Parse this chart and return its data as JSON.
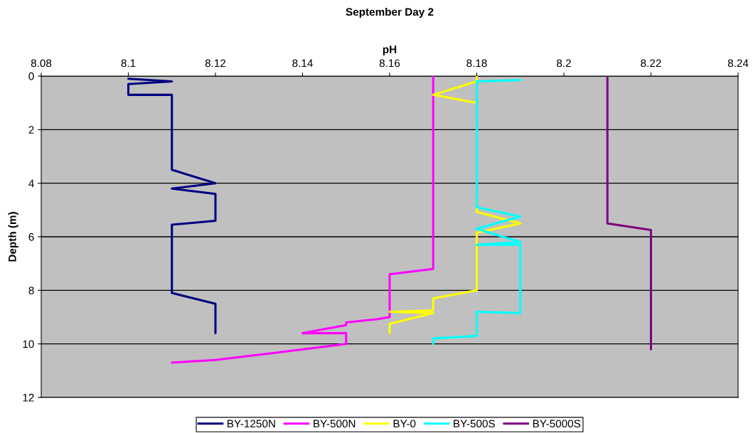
{
  "chart_data": {
    "type": "line",
    "title": "September Day 2",
    "xlabel": "pH",
    "ylabel": "Depth (m)",
    "xlim": [
      8.08,
      8.24
    ],
    "xticks": [
      8.08,
      8.1,
      8.12,
      8.14,
      8.16,
      8.18,
      8.2,
      8.22,
      8.24
    ],
    "ylim": [
      12,
      0
    ],
    "yticks": [
      0,
      2,
      4,
      6,
      8,
      10,
      12
    ],
    "grid": "y",
    "legend": "bottom",
    "marker": "none",
    "line_style": "solid",
    "series": [
      {
        "name": "BY-1250N",
        "color": "#000080",
        "x": [
          8.1,
          8.11,
          8.1,
          8.1,
          8.11,
          8.11,
          8.12,
          8.11,
          8.12,
          8.12,
          8.12,
          8.11,
          8.11,
          8.12,
          8.12
        ],
        "values": [
          0.1,
          0.2,
          0.3,
          0.7,
          0.7,
          3.5,
          4.0,
          4.2,
          4.4,
          4.6,
          5.4,
          5.55,
          8.1,
          8.5,
          9.6
        ]
      },
      {
        "name": "BY-500N",
        "color": "#ff00ff",
        "x": [
          8.17,
          8.17,
          8.17,
          8.16,
          8.16,
          8.16,
          8.157,
          8.15,
          8.15,
          8.14,
          8.15,
          8.15,
          8.133,
          8.12,
          8.11
        ],
        "values": [
          0,
          6.8,
          7.2,
          7.4,
          8.9,
          9.0,
          9.08,
          9.2,
          9.3,
          9.6,
          9.6,
          10.0,
          10.35,
          10.6,
          10.7
        ]
      },
      {
        "name": "BY-0",
        "color": "#ffff00",
        "x": [
          8.18,
          8.18,
          8.17,
          8.18,
          8.18,
          8.19,
          8.18,
          8.18,
          8.18,
          8.17,
          8.17,
          8.16,
          8.17,
          8.16,
          8.16
        ],
        "values": [
          0,
          0.2,
          0.7,
          1.0,
          5.07,
          5.5,
          5.85,
          7.7,
          8.0,
          8.3,
          8.75,
          8.8,
          8.85,
          9.25,
          9.6
        ]
      },
      {
        "name": "BY-500S",
        "color": "#00ffff",
        "x": [
          8.19,
          8.18,
          8.18,
          8.19,
          8.18,
          8.19,
          8.18,
          8.19,
          8.19,
          8.18,
          8.18,
          8.17,
          8.17
        ],
        "values": [
          0.15,
          0.2,
          4.9,
          5.25,
          5.7,
          6.2,
          6.3,
          6.3,
          8.85,
          8.8,
          9.7,
          9.8,
          10.0
        ]
      },
      {
        "name": "BY-5000S",
        "color": "#800080",
        "x": [
          8.21,
          8.21,
          8.22,
          8.22,
          8.22
        ],
        "values": [
          0,
          5.5,
          5.75,
          6.0,
          10.2
        ]
      }
    ]
  }
}
